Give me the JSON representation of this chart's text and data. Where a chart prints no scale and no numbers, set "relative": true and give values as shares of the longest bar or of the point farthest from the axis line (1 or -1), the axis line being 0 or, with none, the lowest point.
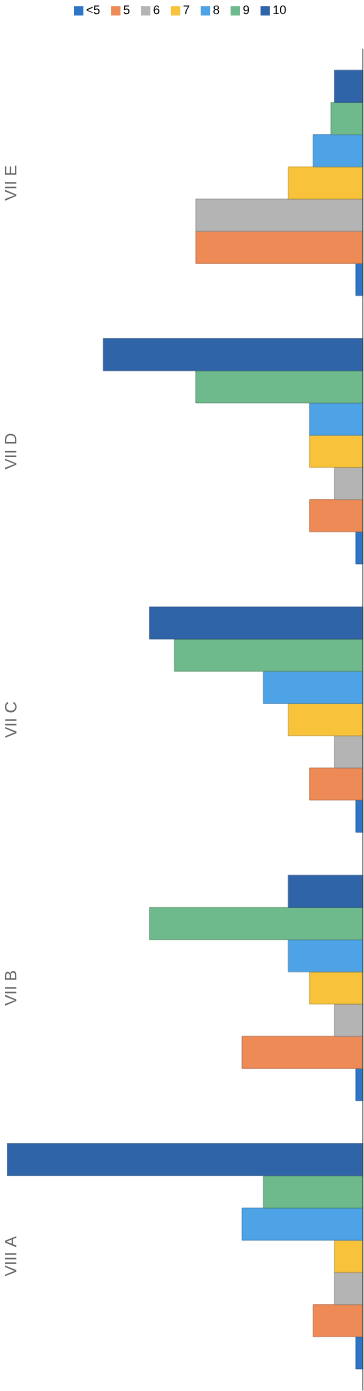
{
  "chart_data": {
    "type": "bar",
    "orientation": "horizontal",
    "relative": true,
    "legend": "top",
    "categories": [
      "VII E",
      "VII D",
      "VII C",
      "VII B",
      "VIII A"
    ],
    "series": [
      {
        "name": "<5",
        "color": "#2e75c6",
        "values": [
          0.02,
          0.02,
          0.02,
          0.02,
          0.02
        ]
      },
      {
        "name": "5",
        "color": "#ed8a55",
        "values": [
          0.47,
          0.15,
          0.15,
          0.34,
          0.14
        ]
      },
      {
        "name": "6",
        "color": "#b4b4b4",
        "values": [
          0.47,
          0.08,
          0.08,
          0.08,
          0.08
        ]
      },
      {
        "name": "7",
        "color": "#f8c33a",
        "values": [
          0.21,
          0.15,
          0.21,
          0.15,
          0.08
        ]
      },
      {
        "name": "8",
        "color": "#4ea3e6",
        "values": [
          0.14,
          0.15,
          0.28,
          0.21,
          0.34
        ]
      },
      {
        "name": "9",
        "color": "#6fba8c",
        "values": [
          0.09,
          0.47,
          0.53,
          0.6,
          0.28
        ]
      },
      {
        "name": "10",
        "color": "#2f64a8",
        "values": [
          0.08,
          0.73,
          0.6,
          0.21,
          1
        ]
      }
    ]
  }
}
